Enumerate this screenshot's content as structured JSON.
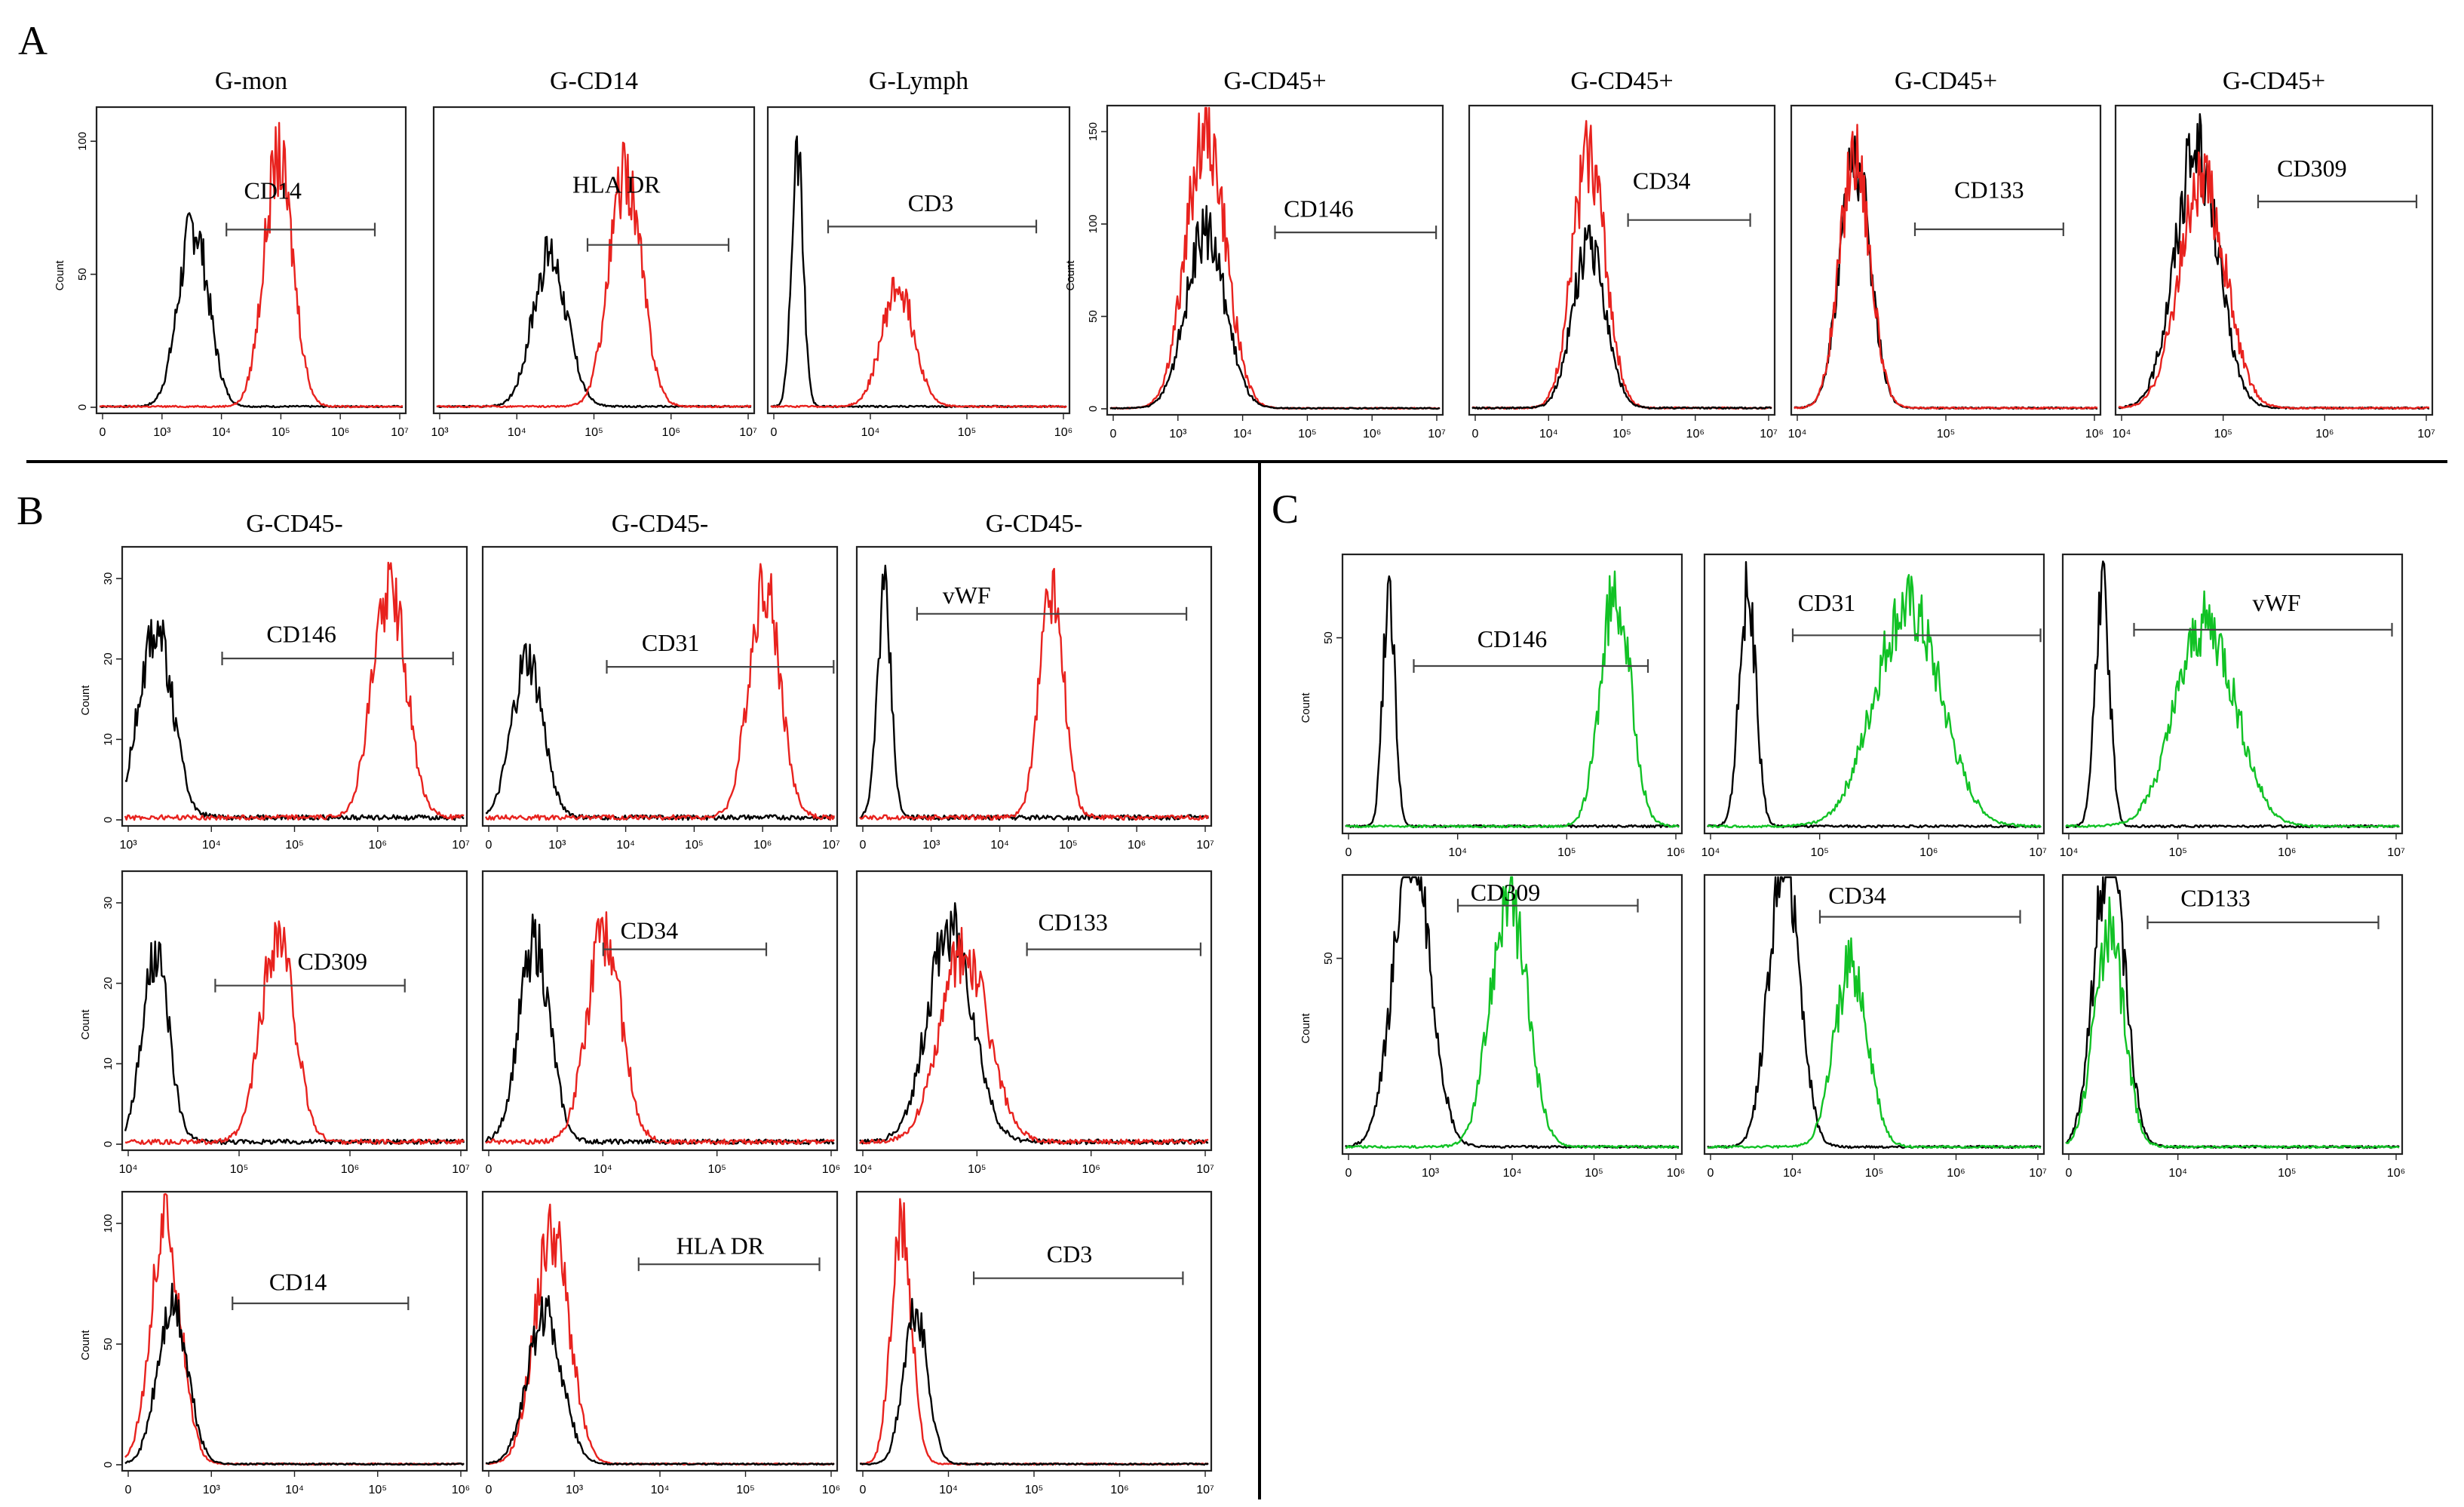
{
  "panel_labels": {
    "a": "A",
    "b": "B",
    "c": "C"
  },
  "colors": {
    "control": "#000000",
    "red": "#e8221e",
    "green": "#11c225",
    "axis": "#222222",
    "divider": "#000000"
  },
  "chart_data": {
    "type": "histogram-panels",
    "x_tick_labels": {
      "full": [
        "0",
        "10³",
        "10⁴",
        "10⁵",
        "10⁶",
        "10⁷"
      ],
      "dec3_7": [
        "10³",
        "10⁴",
        "10⁵",
        "10⁶",
        "10⁷"
      ],
      "z4_6": [
        "0",
        "10⁴",
        "10⁵",
        "10⁶"
      ],
      "z4_7": [
        "0",
        "10⁴",
        "10⁵",
        "10⁶",
        "10⁷"
      ],
      "dec4_7": [
        "10⁴",
        "10⁵",
        "10⁶",
        "10⁷"
      ],
      "dec4_6": [
        "10⁴",
        "10⁵",
        "10⁶"
      ],
      "z3_6": [
        "0",
        "10³",
        "10⁴",
        "10⁵",
        "10⁶"
      ]
    },
    "y_label": "Count",
    "panels": [
      {
        "key": "A1",
        "title": "G-mon",
        "marker": "CD14",
        "yticks": [
          "0",
          "50",
          "100"
        ],
        "ymax": 110,
        "xticks": "full",
        "gate": [
          0.42,
          0.9
        ],
        "gate_y": 0.6,
        "label_pos": [
          0.57,
          0.73
        ],
        "series": [
          {
            "color": "control",
            "peak": 0.31,
            "width": 0.05,
            "height": 68
          },
          {
            "color": "red",
            "peak": 0.59,
            "width": 0.048,
            "height": 93
          }
        ]
      },
      {
        "key": "A2",
        "title": "G-CD14",
        "marker": "HLA DR",
        "yticks": [],
        "ymax": 110,
        "xticks": "dec3_7",
        "gate": [
          0.48,
          0.92
        ],
        "gate_y": 0.55,
        "label_pos": [
          0.57,
          0.75
        ],
        "series": [
          {
            "color": "control",
            "peak": 0.36,
            "width": 0.055,
            "height": 57
          },
          {
            "color": "red",
            "peak": 0.6,
            "width": 0.052,
            "height": 87
          }
        ]
      },
      {
        "key": "A3",
        "title": "G-Lymph",
        "marker": "CD3",
        "yticks": [],
        "ymax": 110,
        "xticks": "z4_6",
        "gate": [
          0.2,
          0.89
        ],
        "gate_y": 0.61,
        "label_pos": [
          0.54,
          0.69
        ],
        "series": [
          {
            "color": "control",
            "peak": 0.09,
            "width": 0.02,
            "height": 95
          },
          {
            "color": "red",
            "peak": 0.43,
            "width": 0.055,
            "height": 45
          }
        ]
      },
      {
        "key": "A4",
        "title": "G-CD45+",
        "marker": "CD146",
        "yticks": [
          "0",
          "50",
          "100",
          "150"
        ],
        "ymax": 160,
        "xticks": "full",
        "gate": [
          0.5,
          0.98
        ],
        "gate_y": 0.59,
        "label_pos": [
          0.63,
          0.67
        ],
        "series": [
          {
            "color": "red",
            "peak": 0.29,
            "width": 0.06,
            "height": 150
          },
          {
            "color": "control",
            "peak": 0.29,
            "width": 0.06,
            "height": 95
          }
        ]
      },
      {
        "key": "A5",
        "title": "G-CD45+",
        "marker": "CD34",
        "yticks": [],
        "ymax": 110,
        "xticks": "z4_7",
        "gate": [
          0.52,
          0.92
        ],
        "gate_y": 0.63,
        "label_pos": [
          0.63,
          0.76
        ],
        "series": [
          {
            "color": "red",
            "peak": 0.39,
            "width": 0.055,
            "height": 95
          },
          {
            "color": "control",
            "peak": 0.39,
            "width": 0.055,
            "height": 60
          }
        ]
      },
      {
        "key": "A6",
        "title": "G-CD45+",
        "marker": "CD133",
        "yticks": [],
        "ymax": 110,
        "xticks": "dec4_6",
        "gate": [
          0.4,
          0.88
        ],
        "gate_y": 0.6,
        "label_pos": [
          0.64,
          0.73
        ],
        "series": [
          {
            "color": "control",
            "peak": 0.2,
            "width": 0.05,
            "height": 94
          },
          {
            "color": "red",
            "peak": 0.2,
            "width": 0.05,
            "height": 96
          }
        ]
      },
      {
        "key": "A7",
        "title": "G-CD45+",
        "marker": "CD309",
        "yticks": [],
        "ymax": 110,
        "xticks": "dec4_7",
        "gate": [
          0.45,
          0.95
        ],
        "gate_y": 0.69,
        "label_pos": [
          0.62,
          0.8
        ],
        "series": [
          {
            "color": "control",
            "peak": 0.25,
            "width": 0.07,
            "height": 96
          },
          {
            "color": "red",
            "peak": 0.27,
            "width": 0.075,
            "height": 84
          }
        ]
      },
      {
        "key": "B1",
        "title": "G-CD45-",
        "marker": "CD146",
        "yticks": [
          "0",
          "10",
          "20",
          "30"
        ],
        "ymax": 33,
        "xticks": "dec3_7",
        "gate": [
          0.29,
          0.96
        ],
        "gate_y": 0.6,
        "label_pos": [
          0.52,
          0.69
        ],
        "series": [
          {
            "color": "control",
            "peak": 0.09,
            "width": 0.05,
            "height": 24
          },
          {
            "color": "red",
            "peak": 0.78,
            "width": 0.05,
            "height": 29
          }
        ]
      },
      {
        "key": "B2",
        "title": "G-CD45-",
        "marker": "CD31",
        "yticks": [],
        "ymax": 33,
        "xticks": "full",
        "gate": [
          0.35,
          0.99
        ],
        "gate_y": 0.57,
        "label_pos": [
          0.53,
          0.66
        ],
        "series": [
          {
            "color": "control",
            "peak": 0.12,
            "width": 0.045,
            "height": 20
          },
          {
            "color": "red",
            "peak": 0.8,
            "width": 0.045,
            "height": 29
          }
        ]
      },
      {
        "key": "B3",
        "title": "G-CD45-",
        "marker": "vWF",
        "yticks": [],
        "ymax": 33,
        "xticks": "full",
        "gate": [
          0.17,
          0.93
        ],
        "gate_y": 0.76,
        "label_pos": [
          0.31,
          0.83
        ],
        "series": [
          {
            "color": "control",
            "peak": 0.07,
            "width": 0.02,
            "height": 28
          },
          {
            "color": "red",
            "peak": 0.55,
            "width": 0.035,
            "height": 29
          }
        ]
      },
      {
        "key": "B4",
        "title": "",
        "marker": "CD309",
        "yticks": [
          "0",
          "10",
          "20",
          "30"
        ],
        "ymax": 33,
        "xticks": "dec4_7",
        "gate": [
          0.27,
          0.82
        ],
        "gate_y": 0.59,
        "label_pos": [
          0.61,
          0.68
        ],
        "series": [
          {
            "color": "control",
            "peak": 0.09,
            "width": 0.04,
            "height": 23
          },
          {
            "color": "red",
            "peak": 0.45,
            "width": 0.05,
            "height": 26
          }
        ]
      },
      {
        "key": "B5",
        "title": "",
        "marker": "CD34",
        "yticks": [],
        "ymax": 33,
        "xticks": "z4_6",
        "gate": [
          0.34,
          0.8
        ],
        "gate_y": 0.72,
        "label_pos": [
          0.47,
          0.79
        ],
        "series": [
          {
            "color": "control",
            "peak": 0.14,
            "width": 0.045,
            "height": 25
          },
          {
            "color": "red",
            "peak": 0.34,
            "width": 0.05,
            "height": 26
          }
        ]
      },
      {
        "key": "B6",
        "title": "",
        "marker": "CD133",
        "yticks": [],
        "ymax": 33,
        "xticks": "dec4_7",
        "gate": [
          0.48,
          0.97
        ],
        "gate_y": 0.72,
        "label_pos": [
          0.61,
          0.82
        ],
        "series": [
          {
            "color": "control",
            "peak": 0.26,
            "width": 0.065,
            "height": 27
          },
          {
            "color": "red",
            "peak": 0.3,
            "width": 0.07,
            "height": 24
          }
        ]
      },
      {
        "key": "B7",
        "title": "",
        "marker": "CD14",
        "yticks": [
          "0",
          "50",
          "100"
        ],
        "ymax": 110,
        "xticks": "z3_6",
        "gate": [
          0.32,
          0.83
        ],
        "gate_y": 0.6,
        "label_pos": [
          0.51,
          0.68
        ],
        "series": [
          {
            "color": "red",
            "peak": 0.12,
            "width": 0.045,
            "height": 100
          },
          {
            "color": "control",
            "peak": 0.14,
            "width": 0.045,
            "height": 65
          }
        ]
      },
      {
        "key": "B8",
        "title": "",
        "marker": "HLA DR",
        "yticks": [],
        "ymax": 110,
        "xticks": "z3_6",
        "gate": [
          0.44,
          0.95
        ],
        "gate_y": 0.74,
        "label_pos": [
          0.67,
          0.81
        ],
        "series": [
          {
            "color": "red",
            "peak": 0.19,
            "width": 0.05,
            "height": 98
          },
          {
            "color": "control",
            "peak": 0.17,
            "width": 0.05,
            "height": 62
          }
        ]
      },
      {
        "key": "B9",
        "title": "",
        "marker": "CD3",
        "yticks": [],
        "ymax": 110,
        "xticks": "z4_7",
        "gate": [
          0.33,
          0.92
        ],
        "gate_y": 0.69,
        "label_pos": [
          0.6,
          0.78
        ],
        "series": [
          {
            "color": "red",
            "peak": 0.12,
            "width": 0.03,
            "height": 98
          },
          {
            "color": "control",
            "peak": 0.16,
            "width": 0.035,
            "height": 62
          }
        ]
      },
      {
        "key": "C1",
        "title": "",
        "marker": "CD146",
        "yticks": [
          "50"
        ],
        "ymax": 70,
        "xticks": "z4_6",
        "gate": [
          0.21,
          0.9
        ],
        "gate_y": 0.6,
        "label_pos": [
          0.5,
          0.7
        ],
        "series": [
          {
            "color": "control",
            "peak": 0.13,
            "width": 0.018,
            "height": 62
          },
          {
            "color": "green",
            "peak": 0.81,
            "width": 0.045,
            "height": 62
          }
        ]
      },
      {
        "key": "C2",
        "title": "",
        "marker": "CD31",
        "yticks": [],
        "ymax": 70,
        "xticks": "dec4_7",
        "gate": [
          0.26,
          0.99
        ],
        "gate_y": 0.71,
        "label_pos": [
          0.36,
          0.83
        ],
        "series": [
          {
            "color": "control",
            "peak": 0.12,
            "width": 0.025,
            "height": 62
          },
          {
            "color": "green",
            "peak": 0.6,
            "width": 0.1,
            "height": 58
          }
        ]
      },
      {
        "key": "C3",
        "title": "",
        "marker": "vWF",
        "yticks": [],
        "ymax": 70,
        "xticks": "dec4_7",
        "gate": [
          0.21,
          0.97
        ],
        "gate_y": 0.73,
        "label_pos": [
          0.63,
          0.83
        ],
        "series": [
          {
            "color": "control",
            "peak": 0.11,
            "width": 0.022,
            "height": 62
          },
          {
            "color": "green",
            "peak": 0.42,
            "width": 0.09,
            "height": 54
          }
        ]
      },
      {
        "key": "C4",
        "title": "",
        "marker": "CD309",
        "yticks": [
          "50"
        ],
        "ymax": 70,
        "xticks": "z3_6",
        "gate": [
          0.34,
          0.87
        ],
        "gate_y": 0.89,
        "label_pos": [
          0.48,
          0.94
        ],
        "series": [
          {
            "color": "control",
            "peak": 0.2,
            "width": 0.055,
            "height": 80
          },
          {
            "color": "green",
            "peak": 0.49,
            "width": 0.055,
            "height": 66
          }
        ]
      },
      {
        "key": "C5",
        "title": "",
        "marker": "CD34",
        "yticks": [],
        "ymax": 70,
        "xticks": "z4_7",
        "gate": [
          0.34,
          0.93
        ],
        "gate_y": 0.85,
        "label_pos": [
          0.45,
          0.93
        ],
        "series": [
          {
            "color": "control",
            "peak": 0.23,
            "width": 0.045,
            "height": 80
          },
          {
            "color": "green",
            "peak": 0.43,
            "width": 0.05,
            "height": 48
          }
        ]
      },
      {
        "key": "C6",
        "title": "",
        "marker": "CD133",
        "yticks": [],
        "ymax": 70,
        "xticks": "z4_6",
        "gate": [
          0.25,
          0.93
        ],
        "gate_y": 0.83,
        "label_pos": [
          0.45,
          0.92
        ],
        "series": [
          {
            "color": "control",
            "peak": 0.13,
            "width": 0.045,
            "height": 80
          },
          {
            "color": "green",
            "peak": 0.13,
            "width": 0.045,
            "height": 57
          }
        ]
      }
    ]
  }
}
